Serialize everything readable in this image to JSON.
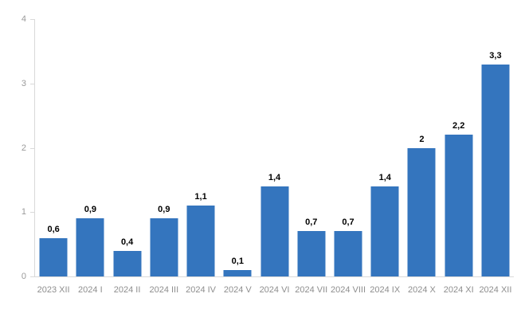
{
  "chart_data": {
    "type": "bar",
    "categories": [
      "2023 XII",
      "2024 I",
      "2024 II",
      "2024 III",
      "2024 IV",
      "2024 V",
      "2024 VI",
      "2024 VII",
      "2024 VIII",
      "2024 IX",
      "2024 X",
      "2024 XI",
      "2024 XII"
    ],
    "values": [
      0.6,
      0.9,
      0.4,
      0.9,
      1.1,
      0.1,
      1.4,
      0.7,
      0.7,
      1.4,
      2,
      2.2,
      3.3
    ],
    "value_labels": [
      "0,6",
      "0,9",
      "0,4",
      "0,9",
      "1,1",
      "0,1",
      "1,4",
      "0,7",
      "0,7",
      "1,4",
      "2",
      "2,2",
      "3,3"
    ],
    "title": "",
    "xlabel": "",
    "ylabel": "",
    "ylim": [
      0,
      4
    ],
    "yticks": [
      "0",
      "1",
      "2",
      "3",
      "4"
    ],
    "grid": false,
    "legend": "none",
    "colors": {
      "bar": "#3475be",
      "axis": "#d9d9d9",
      "y_tick_label": "#9a9a9a",
      "x_tick_label": "#8e8e8e",
      "data_label": "#000000",
      "background": "#ffffff"
    }
  }
}
